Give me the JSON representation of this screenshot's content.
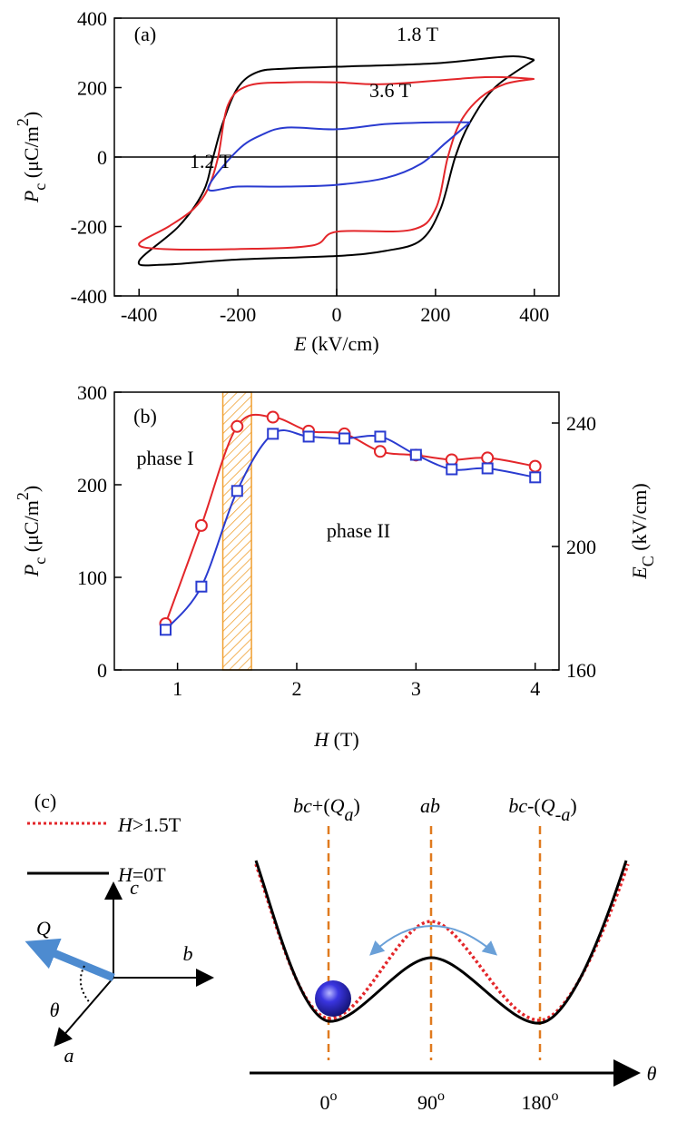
{
  "chart_data": [
    {
      "type": "line",
      "panel_label": "(a)",
      "xlabel": [
        {
          "text": "E",
          "style": "italic"
        },
        {
          "text": " (kV/cm)"
        }
      ],
      "ylabel": [
        {
          "text": "P",
          "style": "italic"
        },
        {
          "text": "c",
          "style": "sub"
        },
        {
          "text": " (μC/m"
        },
        {
          "text": "2",
          "style": "sup"
        },
        {
          "text": ")"
        }
      ],
      "xlim": [
        -450,
        450
      ],
      "ylim": [
        -400,
        400
      ],
      "xticks": [
        -400,
        -200,
        0,
        200,
        400
      ],
      "yticks": [
        -400,
        -200,
        0,
        200,
        400
      ],
      "zero_lines": true,
      "series": [
        {
          "name": "1.8 T",
          "color": "#000000",
          "x": [
            400,
            350,
            200,
            0,
            -100,
            -160,
            -200,
            -230,
            -250,
            -270,
            -320,
            -400,
            -350,
            -200,
            0,
            100,
            170,
            210,
            240,
            270,
            320,
            400
          ],
          "values": [
            280,
            290,
            270,
            260,
            255,
            245,
            200,
            100,
            0,
            -100,
            -200,
            -300,
            -310,
            -295,
            -285,
            -270,
            -240,
            -150,
            0,
            100,
            200,
            280
          ]
        },
        {
          "name": "3.6 T",
          "color": "#e3262a",
          "x": [
            400,
            300,
            100,
            0,
            -100,
            -180,
            -220,
            -240,
            -260,
            -290,
            -340,
            -400,
            -350,
            -200,
            -50,
            0,
            150,
            200,
            225,
            250,
            290,
            340,
            400
          ],
          "values": [
            225,
            230,
            210,
            215,
            215,
            205,
            150,
            0,
            -90,
            -150,
            -200,
            -250,
            -265,
            -265,
            -255,
            -215,
            -210,
            -150,
            0,
            100,
            170,
            210,
            225
          ]
        },
        {
          "name": "1.2 T",
          "color": "#2a3bd0",
          "x": [
            270,
            200,
            100,
            0,
            -100,
            -150,
            -200,
            -260,
            -200,
            -100,
            0,
            100,
            170,
            220,
            270
          ],
          "values": [
            100,
            100,
            95,
            80,
            85,
            65,
            20,
            -90,
            -85,
            -85,
            -80,
            -60,
            -20,
            40,
            100
          ]
        }
      ]
    },
    {
      "type": "line",
      "panel_label": "(b)",
      "xlabel": [
        {
          "text": "H",
          "style": "italic"
        },
        {
          "text": " (T)"
        }
      ],
      "ylabel": [
        {
          "text": "P",
          "style": "italic"
        },
        {
          "text": "c",
          "style": "sub"
        },
        {
          "text": " (μC/m"
        },
        {
          "text": "2",
          "style": "sup"
        },
        {
          "text": ")"
        }
      ],
      "y2label": [
        {
          "text": "E",
          "style": "italic"
        },
        {
          "text": "C",
          "style": "sub"
        },
        {
          "text": " (kV/cm)"
        }
      ],
      "xlim": [
        0.47,
        4.2
      ],
      "ylim": [
        0,
        300
      ],
      "y2lim": [
        160,
        250
      ],
      "xticks": [
        1,
        2,
        3,
        4
      ],
      "yticks": [
        0,
        100,
        200,
        300
      ],
      "y2ticks": [
        160,
        200,
        240
      ],
      "shaded_range": [
        1.38,
        1.62
      ],
      "shaded_color": "#f0a030",
      "annotations": [
        "phase I",
        "phase II"
      ],
      "series": [
        {
          "color": "#e3262a",
          "marker": "circle",
          "x": [
            0.9,
            1.2,
            1.5,
            1.8,
            2.1,
            2.4,
            2.7,
            3.0,
            3.3,
            3.6,
            4.0
          ],
          "values": [
            50,
            156,
            263,
            273,
            258,
            255,
            236,
            232,
            227,
            229,
            220
          ]
        },
        {
          "color": "#2a3bd0",
          "marker": "square",
          "axis": "y2",
          "x": [
            0.9,
            1.2,
            1.5,
            1.8,
            2.1,
            2.4,
            2.7,
            3.0,
            3.3,
            3.6,
            4.0
          ],
          "values": [
            173,
            187,
            218,
            236.5,
            235.6,
            235,
            235.6,
            229.7,
            225,
            225.3,
            222.4
          ]
        }
      ]
    }
  ],
  "diagram": {
    "panel_label": "(c)",
    "legend": [
      [
        {
          "text": "H",
          "style": "italic"
        },
        {
          "text": ">1.5T"
        }
      ],
      [
        {
          "text": "H",
          "style": "italic"
        },
        {
          "text": "=0T"
        }
      ]
    ],
    "states": [
      [
        {
          "text": "bc",
          "style": "italic"
        },
        {
          "text": "+("
        },
        {
          "text": "Q",
          "style": "italic"
        },
        {
          "text": "a",
          "style": "sub italic"
        },
        {
          "text": ")"
        }
      ],
      [
        {
          "text": "ab",
          "style": "italic"
        }
      ],
      [
        {
          "text": "bc",
          "style": "italic"
        },
        {
          "text": "-("
        },
        {
          "text": "Q",
          "style": "italic"
        },
        {
          "text": "-a",
          "style": "sub italic"
        },
        {
          "text": ")"
        }
      ]
    ],
    "theta_ticks": [
      [
        {
          "text": "0"
        },
        {
          "text": "o",
          "style": "sup"
        }
      ],
      [
        {
          "text": "90"
        },
        {
          "text": "o",
          "style": "sup"
        }
      ],
      [
        {
          "text": "180"
        },
        {
          "text": "o",
          "style": "sup"
        }
      ]
    ],
    "axis_labels": {
      "c": "c",
      "b": "b",
      "a": "a",
      "Q": "Q",
      "angle": "θ",
      "theta": "θ"
    }
  }
}
